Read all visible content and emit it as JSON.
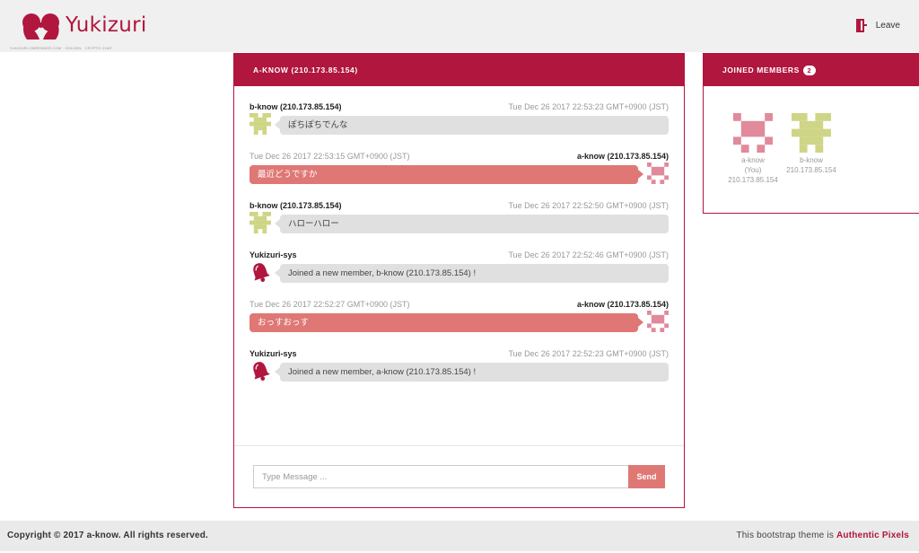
{
  "header": {
    "brand": "Yukizuri",
    "subtitle": "YUKIZURI.ONRENDER.COM · GOLDEN · CRYPTO CHAT",
    "leave_label": "Leave"
  },
  "chat": {
    "title": "A-KNOW (210.173.85.154)",
    "messages": [
      {
        "direction": "in",
        "name": "b-know (210.173.85.154)",
        "time": "Tue Dec 26 2017 22:53:23 GMT+0900 (JST)",
        "text": "ぽちぽちでんな",
        "avatar": "green-identicon"
      },
      {
        "direction": "out",
        "name": "a-know (210.173.85.154)",
        "time": "Tue Dec 26 2017 22:53:15 GMT+0900 (JST)",
        "text": "最近どうですか",
        "avatar": "pink-identicon"
      },
      {
        "direction": "in",
        "name": "b-know (210.173.85.154)",
        "time": "Tue Dec 26 2017 22:52:50 GMT+0900 (JST)",
        "text": "ハローハロー",
        "avatar": "green-identicon"
      },
      {
        "direction": "in",
        "name": "Yukizuri-sys",
        "time": "Tue Dec 26 2017 22:52:46 GMT+0900 (JST)",
        "text": "Joined a new member, b-know (210.173.85.154) !",
        "avatar": "bell-icon"
      },
      {
        "direction": "out",
        "name": "a-know (210.173.85.154)",
        "time": "Tue Dec 26 2017 22:52:27 GMT+0900 (JST)",
        "text": "おっすおっす",
        "avatar": "pink-identicon"
      },
      {
        "direction": "in",
        "name": "Yukizuri-sys",
        "time": "Tue Dec 26 2017 22:52:23 GMT+0900 (JST)",
        "text": "Joined a new member, a-know (210.173.85.154) !",
        "avatar": "bell-icon"
      }
    ],
    "input_placeholder": "Type Message ...",
    "input_value": "",
    "send_label": "Send"
  },
  "members": {
    "title": "JOINED MEMBERS",
    "count": "2",
    "list": [
      {
        "name": "a-know",
        "note": "(You)",
        "ip": "210.173.85.154",
        "avatar": "pink-identicon"
      },
      {
        "name": "b-know",
        "note": "",
        "ip": "210.173.85.154",
        "avatar": "green-identicon"
      }
    ]
  },
  "footer": {
    "copyright": "Copyright © 2017 a-know. All rights reserved.",
    "theme_prefix": "This bootstrap theme is ",
    "theme_link": "Authentic Pixels"
  },
  "colors": {
    "brand": "#b0163e",
    "out_bubble": "#df7875",
    "in_bubble": "#e0e0e0",
    "identicon_pink": "#e08a9c",
    "identicon_green": "#cfd586"
  }
}
